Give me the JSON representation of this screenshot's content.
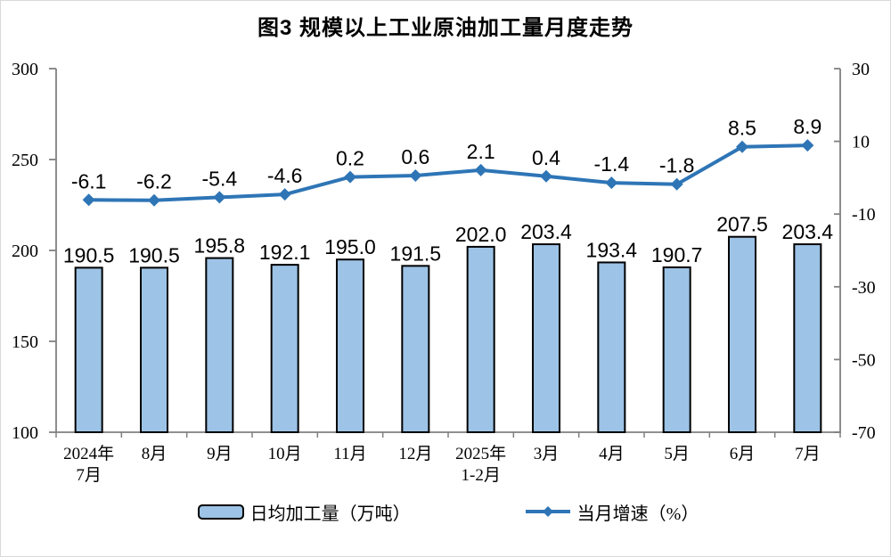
{
  "chart_data": {
    "type": "bar",
    "combo": "bar+line",
    "title": "图3  规模以上工业原油加工量月度走势",
    "categories": [
      [
        "2024年",
        "7月"
      ],
      [
        "8月"
      ],
      [
        "9月"
      ],
      [
        "10月"
      ],
      [
        "11月"
      ],
      [
        "12月"
      ],
      [
        "2025年",
        "1-2月"
      ],
      [
        "3月"
      ],
      [
        "4月"
      ],
      [
        "5月"
      ],
      [
        "6月"
      ],
      [
        "7月"
      ]
    ],
    "series": [
      {
        "name": "日均加工量（万吨）",
        "type": "bar",
        "axis": "left",
        "values": [
          190.5,
          190.5,
          195.8,
          192.1,
          195.0,
          191.5,
          202.0,
          203.4,
          193.4,
          190.7,
          207.5,
          203.4
        ],
        "fill_color": "#9DC3E6",
        "border_color": "#000000"
      },
      {
        "name": "当月增速（%）",
        "type": "line",
        "axis": "right",
        "values": [
          -6.1,
          -6.2,
          -5.4,
          -4.6,
          0.2,
          0.6,
          2.1,
          0.4,
          -1.4,
          -1.8,
          8.5,
          8.9
        ],
        "color": "#2E75B6",
        "marker": "diamond"
      }
    ],
    "left_axis": {
      "min": 100,
      "max": 300,
      "ticks": [
        300,
        250,
        200,
        150,
        100
      ]
    },
    "right_axis": {
      "min": -70,
      "max": 30,
      "ticks": [
        30,
        10,
        -10,
        -30,
        -50,
        -70
      ]
    },
    "axis_color": "#808080",
    "text_color": "#000000",
    "grid": false,
    "legend_position": "bottom",
    "value_label_decimals": 1
  }
}
